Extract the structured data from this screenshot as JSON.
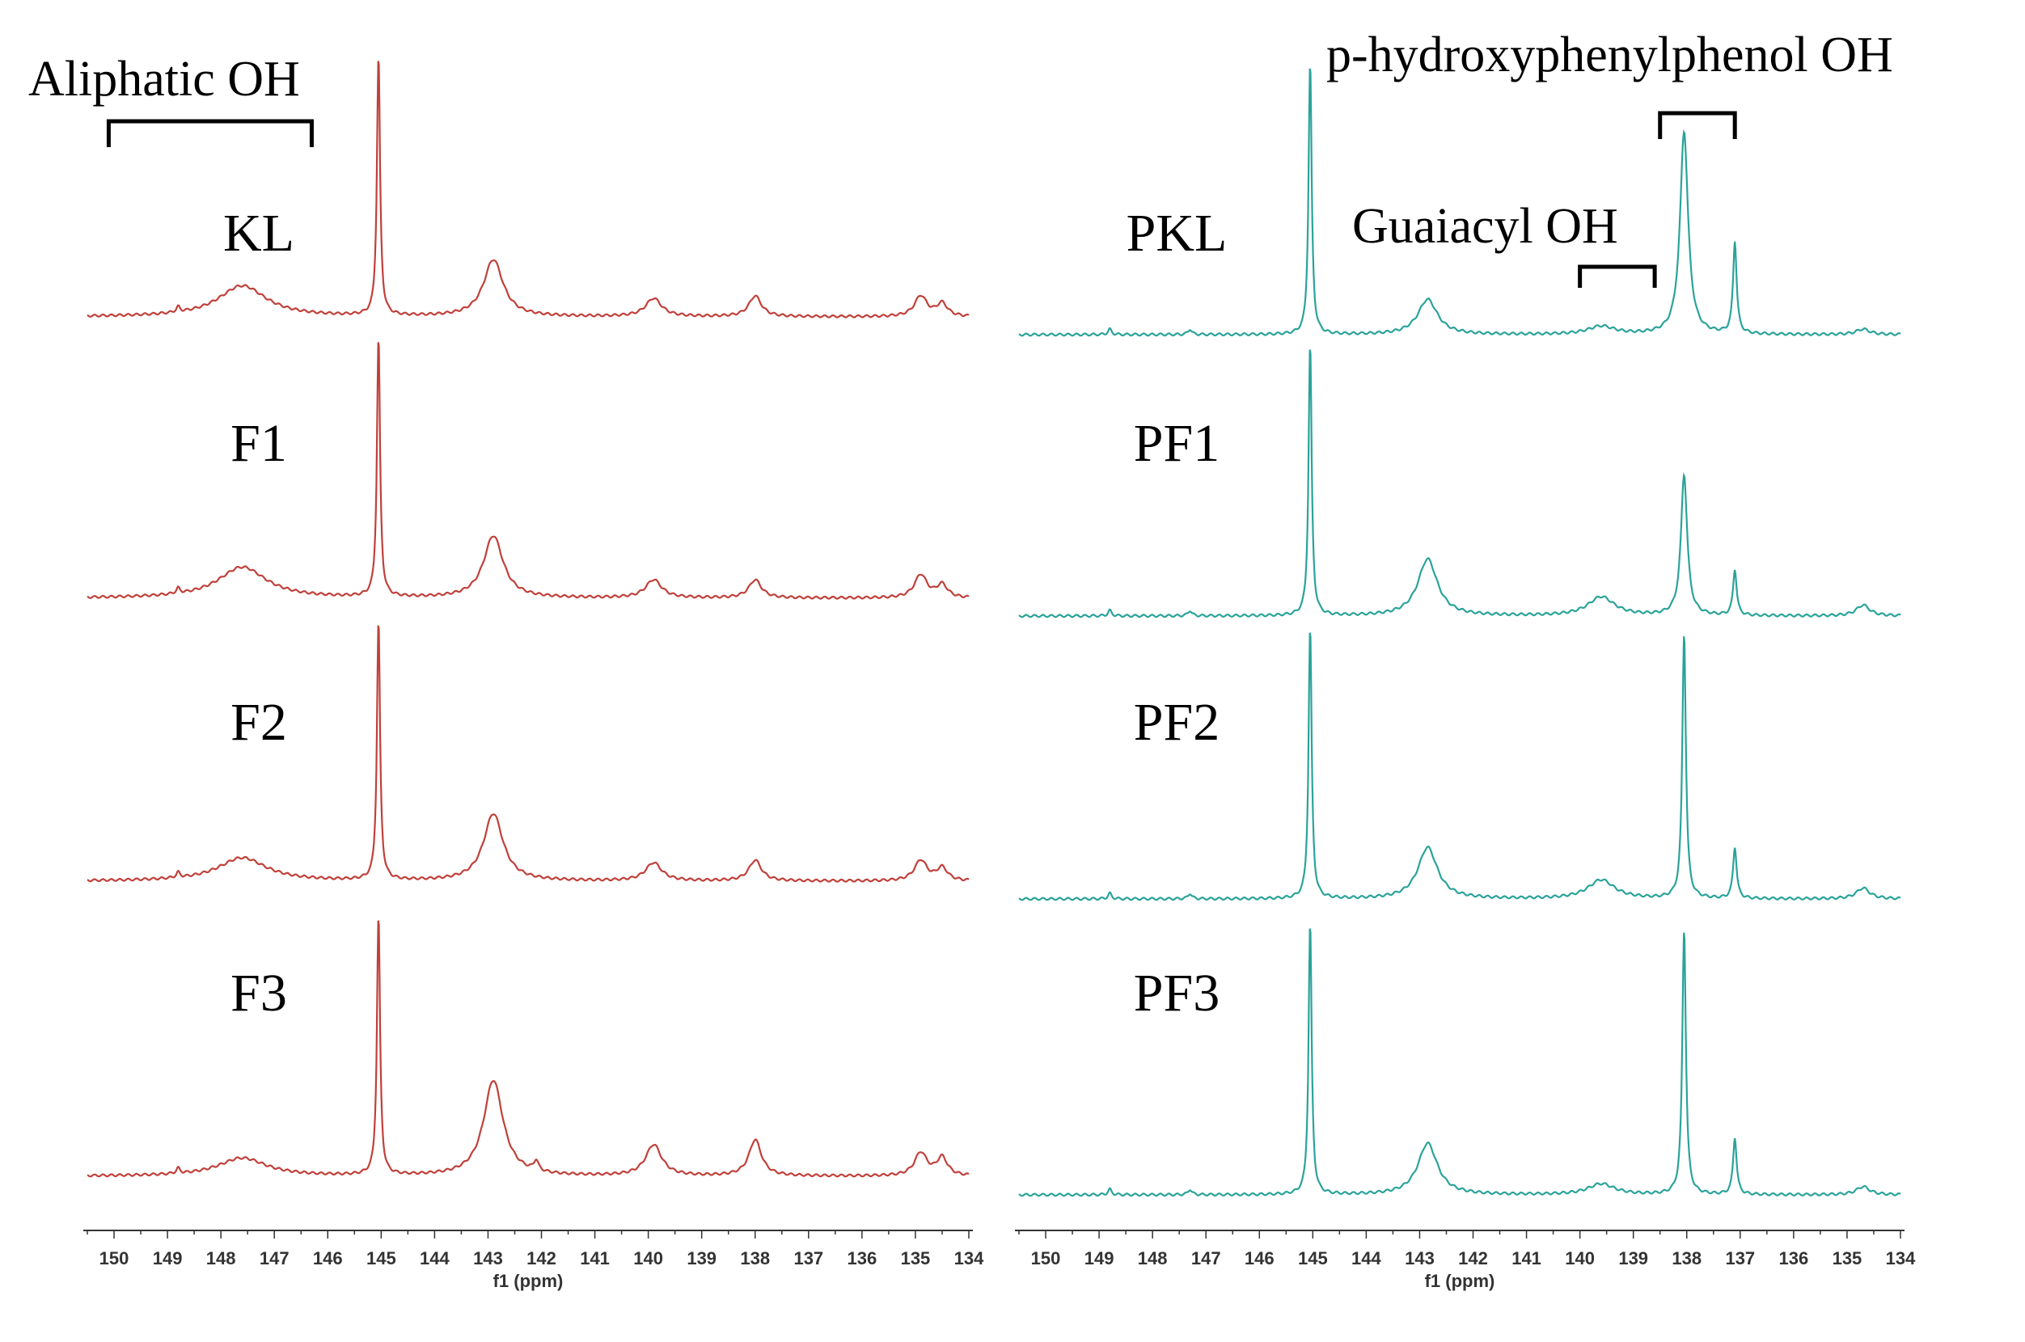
{
  "chart_data": [
    {
      "type": "line",
      "panel": "left",
      "xlabel": "f1 (ppm)",
      "xlim": [
        150.5,
        134
      ],
      "x_ticks": [
        "150",
        "149",
        "148",
        "147",
        "146",
        "145",
        "144",
        "143",
        "142",
        "141",
        "140",
        "139",
        "138",
        "137",
        "136",
        "135",
        "134"
      ],
      "color": "#c0403a",
      "series": [
        {
          "name": "KL",
          "peaks": [
            {
              "ppm": 145.05,
              "height": 1.0,
              "width": 0.035
            },
            {
              "ppm": 142.9,
              "height": 0.22,
              "width": 0.22
            },
            {
              "ppm": 147.6,
              "height": 0.12,
              "width": 0.55
            },
            {
              "ppm": 139.9,
              "height": 0.07,
              "width": 0.18
            },
            {
              "ppm": 138.0,
              "height": 0.08,
              "width": 0.14
            },
            {
              "ppm": 134.9,
              "height": 0.08,
              "width": 0.14
            },
            {
              "ppm": 134.5,
              "height": 0.05,
              "width": 0.12
            },
            {
              "ppm": 148.8,
              "height": 0.02,
              "width": 0.04
            }
          ]
        },
        {
          "name": "F1",
          "peaks": [
            {
              "ppm": 145.05,
              "height": 1.0,
              "width": 0.035
            },
            {
              "ppm": 142.9,
              "height": 0.24,
              "width": 0.22
            },
            {
              "ppm": 147.6,
              "height": 0.12,
              "width": 0.55
            },
            {
              "ppm": 139.9,
              "height": 0.07,
              "width": 0.18
            },
            {
              "ppm": 138.0,
              "height": 0.07,
              "width": 0.14
            },
            {
              "ppm": 134.9,
              "height": 0.09,
              "width": 0.14
            },
            {
              "ppm": 134.5,
              "height": 0.05,
              "width": 0.12
            },
            {
              "ppm": 148.8,
              "height": 0.02,
              "width": 0.04
            }
          ]
        },
        {
          "name": "F2",
          "peaks": [
            {
              "ppm": 145.05,
              "height": 1.0,
              "width": 0.035
            },
            {
              "ppm": 142.9,
              "height": 0.26,
              "width": 0.22
            },
            {
              "ppm": 147.6,
              "height": 0.09,
              "width": 0.55
            },
            {
              "ppm": 139.9,
              "height": 0.07,
              "width": 0.18
            },
            {
              "ppm": 138.0,
              "height": 0.08,
              "width": 0.14
            },
            {
              "ppm": 134.9,
              "height": 0.08,
              "width": 0.14
            },
            {
              "ppm": 134.5,
              "height": 0.05,
              "width": 0.12
            },
            {
              "ppm": 148.8,
              "height": 0.02,
              "width": 0.04
            }
          ]
        },
        {
          "name": "F3",
          "peaks": [
            {
              "ppm": 145.05,
              "height": 1.0,
              "width": 0.035
            },
            {
              "ppm": 142.9,
              "height": 0.37,
              "width": 0.22
            },
            {
              "ppm": 147.6,
              "height": 0.07,
              "width": 0.55
            },
            {
              "ppm": 139.9,
              "height": 0.12,
              "width": 0.18
            },
            {
              "ppm": 138.0,
              "height": 0.14,
              "width": 0.14
            },
            {
              "ppm": 134.9,
              "height": 0.09,
              "width": 0.14
            },
            {
              "ppm": 134.5,
              "height": 0.07,
              "width": 0.12
            },
            {
              "ppm": 142.1,
              "height": 0.04,
              "width": 0.05
            },
            {
              "ppm": 148.8,
              "height": 0.02,
              "width": 0.04
            }
          ]
        }
      ]
    },
    {
      "type": "line",
      "panel": "right",
      "xlabel": "f1 (ppm)",
      "xlim": [
        150.5,
        134
      ],
      "x_ticks": [
        "150",
        "149",
        "148",
        "147",
        "146",
        "145",
        "144",
        "143",
        "142",
        "141",
        "140",
        "139",
        "138",
        "137",
        "136",
        "135",
        "134"
      ],
      "color": "#2aa39a",
      "series": [
        {
          "name": "PKL",
          "peaks": [
            {
              "ppm": 145.05,
              "height": 1.0,
              "width": 0.035
            },
            {
              "ppm": 142.85,
              "height": 0.13,
              "width": 0.22
            },
            {
              "ppm": 139.6,
              "height": 0.03,
              "width": 0.3
            },
            {
              "ppm": 138.05,
              "height": 0.75,
              "width": 0.09
            },
            {
              "ppm": 137.1,
              "height": 0.34,
              "width": 0.04
            },
            {
              "ppm": 134.7,
              "height": 0.02,
              "width": 0.15
            },
            {
              "ppm": 148.8,
              "height": 0.02,
              "width": 0.04
            },
            {
              "ppm": 147.3,
              "height": 0.02,
              "width": 0.04
            }
          ]
        },
        {
          "name": "PF1",
          "peaks": [
            {
              "ppm": 145.05,
              "height": 1.0,
              "width": 0.035
            },
            {
              "ppm": 142.85,
              "height": 0.21,
              "width": 0.22
            },
            {
              "ppm": 139.6,
              "height": 0.07,
              "width": 0.3
            },
            {
              "ppm": 138.05,
              "height": 0.52,
              "width": 0.07
            },
            {
              "ppm": 137.1,
              "height": 0.17,
              "width": 0.04
            },
            {
              "ppm": 134.7,
              "height": 0.04,
              "width": 0.15
            },
            {
              "ppm": 148.8,
              "height": 0.02,
              "width": 0.04
            },
            {
              "ppm": 147.3,
              "height": 0.02,
              "width": 0.04
            }
          ]
        },
        {
          "name": "PF2",
          "peaks": [
            {
              "ppm": 145.05,
              "height": 1.0,
              "width": 0.035
            },
            {
              "ppm": 142.85,
              "height": 0.19,
              "width": 0.22
            },
            {
              "ppm": 139.6,
              "height": 0.07,
              "width": 0.3
            },
            {
              "ppm": 138.05,
              "height": 0.98,
              "width": 0.04
            },
            {
              "ppm": 137.1,
              "height": 0.19,
              "width": 0.04
            },
            {
              "ppm": 134.7,
              "height": 0.04,
              "width": 0.15
            },
            {
              "ppm": 148.8,
              "height": 0.02,
              "width": 0.04
            },
            {
              "ppm": 147.3,
              "height": 0.02,
              "width": 0.04
            }
          ]
        },
        {
          "name": "PF3",
          "peaks": [
            {
              "ppm": 145.05,
              "height": 1.0,
              "width": 0.035
            },
            {
              "ppm": 142.85,
              "height": 0.19,
              "width": 0.22
            },
            {
              "ppm": 139.6,
              "height": 0.04,
              "width": 0.3
            },
            {
              "ppm": 138.05,
              "height": 0.98,
              "width": 0.04
            },
            {
              "ppm": 137.1,
              "height": 0.21,
              "width": 0.04
            },
            {
              "ppm": 134.7,
              "height": 0.03,
              "width": 0.15
            },
            {
              "ppm": 148.8,
              "height": 0.02,
              "width": 0.04
            },
            {
              "ppm": 147.3,
              "height": 0.02,
              "width": 0.04
            }
          ]
        }
      ]
    }
  ],
  "annotations": [
    {
      "label": "Aliphatic OH",
      "panel": "left",
      "from_ppm": 150.1,
      "to_ppm": 146.3
    },
    {
      "label": "Guaiacyl OH",
      "panel": "right",
      "from_ppm": 140.0,
      "to_ppm": 138.6
    },
    {
      "label": "p-hydroxyphenylphenol OH",
      "panel": "right",
      "from_ppm": 138.5,
      "to_ppm": 137.1
    }
  ]
}
